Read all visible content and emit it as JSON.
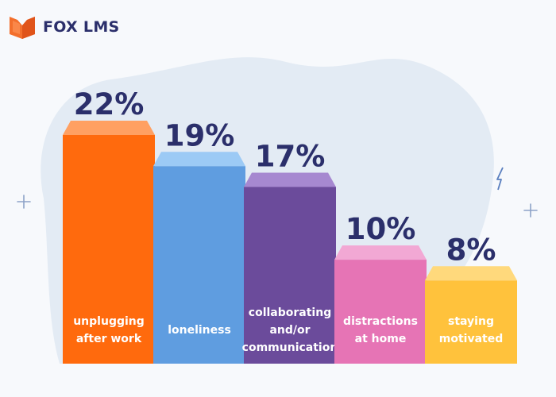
{
  "brand": {
    "name": "FOX LMS",
    "logo_icon": "open-book-fox-logo-icon",
    "logo_color": "#f36f2c"
  },
  "chart_data": {
    "type": "bar",
    "title": "",
    "xlabel": "",
    "ylabel": "",
    "ylim": [
      0,
      25
    ],
    "grid": false,
    "legend": "none",
    "categories": [
      [
        "unplugging",
        "after work"
      ],
      [
        "loneliness"
      ],
      [
        "collaborating",
        "and/or",
        "communication"
      ],
      [
        "distractions",
        "at home"
      ],
      [
        "staying",
        "motivated"
      ]
    ],
    "values": [
      22,
      19,
      17,
      10,
      8
    ],
    "value_labels": [
      "22%",
      "19%",
      "17%",
      "10%",
      "8%"
    ],
    "colors": [
      {
        "front": "#ff6a0d",
        "top": "#ffa062"
      },
      {
        "front": "#5f9de0",
        "top": "#9ccaf5"
      },
      {
        "front": "#6b4b9b",
        "top": "#a688d0"
      },
      {
        "front": "#e674b5",
        "top": "#f2a8d4"
      },
      {
        "front": "#ffc23c",
        "top": "#ffd97c"
      }
    ]
  },
  "decorations": {
    "blob_color": "#e3ebf4",
    "plus_color": "#8da2c8",
    "bolt_color": "#5a7fbf"
  }
}
